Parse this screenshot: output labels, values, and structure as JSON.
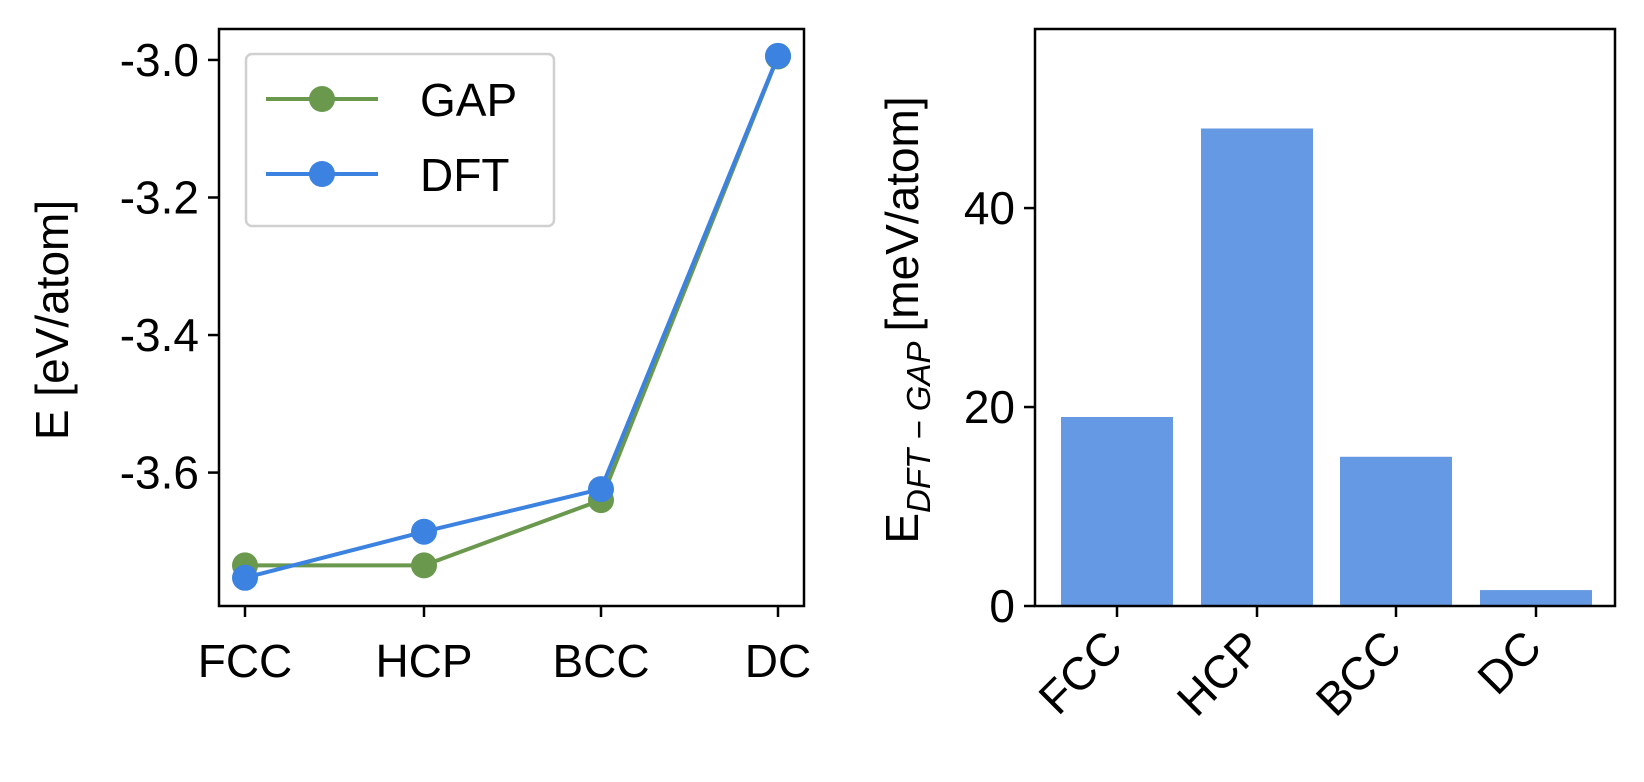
{
  "chart_data": [
    {
      "type": "line",
      "categories": [
        "FCC",
        "HCP",
        "BCC",
        "DC"
      ],
      "series": [
        {
          "name": "GAP",
          "color": "#6a994e",
          "values": [
            -3.735,
            -3.735,
            -3.64,
            -2.995
          ]
        },
        {
          "name": "DFT",
          "color": "#3c82e0",
          "values": [
            -3.753,
            -3.686,
            -3.624,
            -2.994
          ]
        }
      ],
      "ylabel": "E [eV/atom]",
      "xlabel": "",
      "ylim": [
        -3.794,
        -2.955
      ],
      "yticks": [
        {
          "value": -3.0,
          "label": "-3.0"
        },
        {
          "value": -3.2,
          "label": "-3.2"
        },
        {
          "value": -3.4,
          "label": "-3.4"
        },
        {
          "value": -3.6,
          "label": "-3.6"
        }
      ],
      "legend": "top-left",
      "grid": false
    },
    {
      "type": "bar",
      "categories": [
        "FCC",
        "HCP",
        "BCC",
        "DC"
      ],
      "values": [
        19,
        48,
        15,
        1.6
      ],
      "color": "#6699e3",
      "ylabel_main": "E",
      "ylabel_sub": "DFT − GAP",
      "ylabel_unit": "[meV/atom]",
      "ylim": [
        0,
        58
      ],
      "yticks": [
        {
          "value": 0,
          "label": "0"
        },
        {
          "value": 20,
          "label": "20"
        },
        {
          "value": 40,
          "label": "40"
        }
      ],
      "xtick_rotation": 45,
      "grid": false
    }
  ]
}
